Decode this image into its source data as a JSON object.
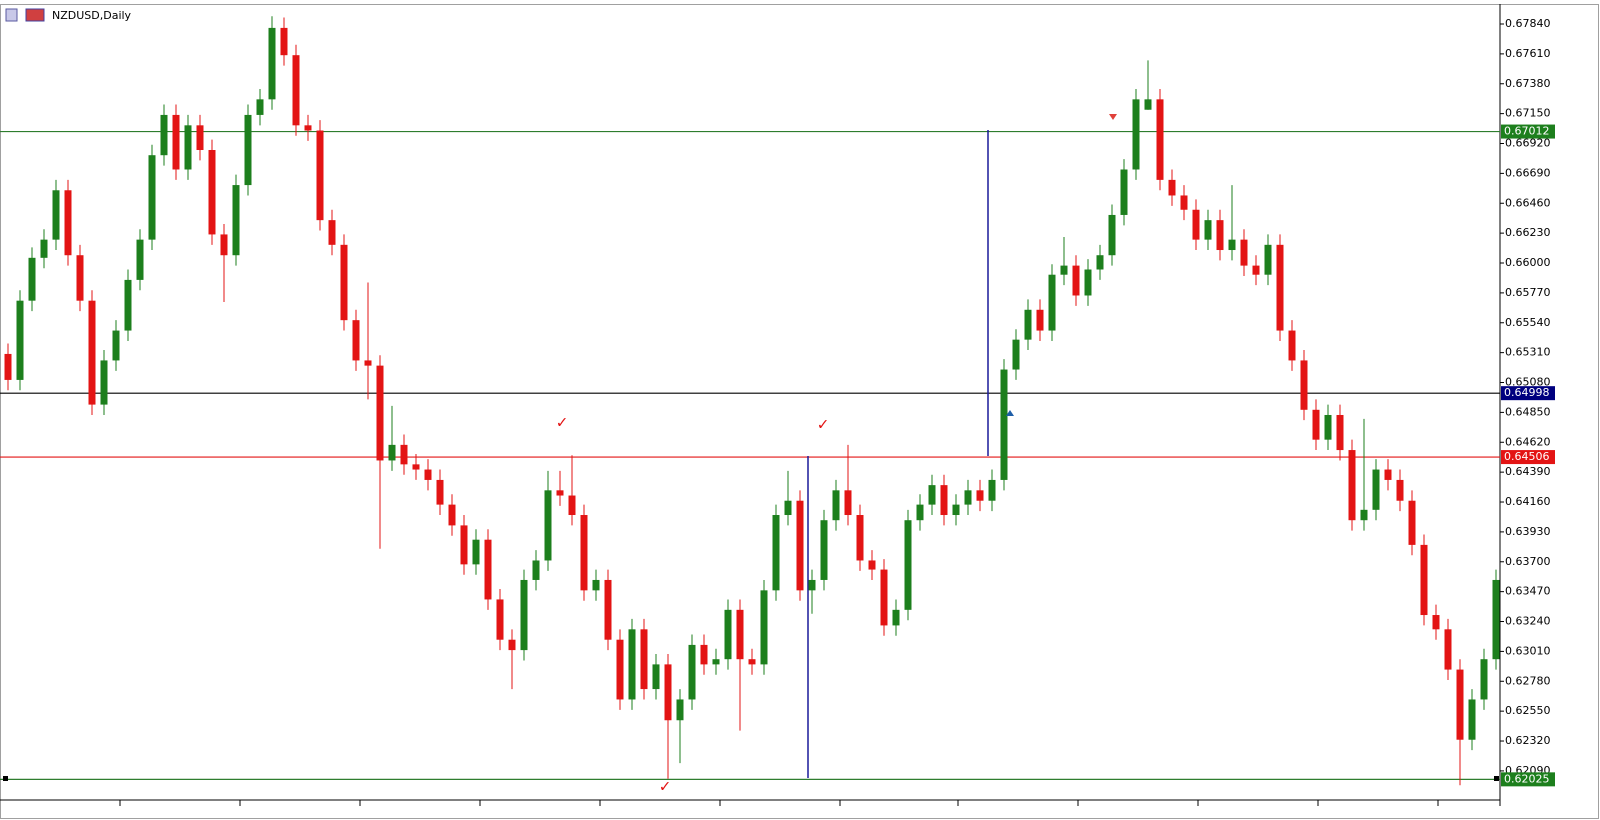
{
  "chart_data": {
    "type": "candlestick",
    "title": "NZDUSD,Daily",
    "up_color": "#1d7f1d",
    "down_color": "#e31414",
    "ylim": [
      0.61866,
      0.67994
    ],
    "yticks": [
      {
        "value": 0.6784,
        "label": "0.67840"
      },
      {
        "value": 0.6761,
        "label": "0.67610"
      },
      {
        "value": 0.6738,
        "label": "0.67380"
      },
      {
        "value": 0.6715,
        "label": "0.67150"
      },
      {
        "value": 0.6692,
        "label": "0.66920"
      },
      {
        "value": 0.6669,
        "label": "0.66690"
      },
      {
        "value": 0.6646,
        "label": "0.66460"
      },
      {
        "value": 0.6623,
        "label": "0.66230"
      },
      {
        "value": 0.66,
        "label": "0.66000"
      },
      {
        "value": 0.6577,
        "label": "0.65770"
      },
      {
        "value": 0.6554,
        "label": "0.65540"
      },
      {
        "value": 0.6531,
        "label": "0.65310"
      },
      {
        "value": 0.6508,
        "label": "0.65080"
      },
      {
        "value": 0.6485,
        "label": "0.64850"
      },
      {
        "value": 0.6462,
        "label": "0.64620"
      },
      {
        "value": 0.6439,
        "label": "0.64390"
      },
      {
        "value": 0.6416,
        "label": "0.64160"
      },
      {
        "value": 0.6393,
        "label": "0.63930"
      },
      {
        "value": 0.637,
        "label": "0.63700"
      },
      {
        "value": 0.6347,
        "label": "0.63470"
      },
      {
        "value": 0.6324,
        "label": "0.63240"
      },
      {
        "value": 0.6301,
        "label": "0.63010"
      },
      {
        "value": 0.6278,
        "label": "0.62780"
      },
      {
        "value": 0.6255,
        "label": "0.62550"
      },
      {
        "value": 0.6232,
        "label": "0.62320"
      },
      {
        "value": 0.6209,
        "label": "0.62090"
      }
    ],
    "levels": [
      {
        "value": 0.67012,
        "color": "#2e7d2e",
        "label_color": "#1d7f1d"
      },
      {
        "value": 0.64998,
        "color": "#000000",
        "label_color": "#00007f"
      },
      {
        "value": 0.64506,
        "color": "#e31414",
        "label_color": "#e31414"
      },
      {
        "value": 0.62025,
        "color": "#2e7d2e",
        "label_color": "#1d7f1d"
      }
    ],
    "open": [
      0.653,
      0.651,
      0.6571,
      0.6604,
      0.6618,
      0.6656,
      0.6606,
      0.6571,
      0.6491,
      0.6525,
      0.6548,
      0.6587,
      0.6618,
      0.6683,
      0.6714,
      0.6672,
      0.6706,
      0.6687,
      0.6622,
      0.6606,
      0.666,
      0.6714,
      0.6726,
      0.6781,
      0.676,
      0.6706,
      0.6702,
      0.6633,
      0.6614,
      0.6556,
      0.6525,
      0.6521,
      0.6448,
      0.646,
      0.6445,
      0.6441,
      0.6433,
      0.6414,
      0.6398,
      0.6368,
      0.6387,
      0.6341,
      0.631,
      0.6302,
      0.6356,
      0.6371,
      0.6425,
      0.6421,
      0.6406,
      0.6348,
      0.6356,
      0.631,
      0.6264,
      0.6318,
      0.6272,
      0.6291,
      0.6248,
      0.6264,
      0.6306,
      0.6291,
      0.6295,
      0.6333,
      0.6295,
      0.6291,
      0.6348,
      0.6406,
      0.6417,
      0.6348,
      0.6356,
      0.6402,
      0.6425,
      0.6406,
      0.6371,
      0.6364,
      0.6321,
      0.6333,
      0.6402,
      0.6414,
      0.6429,
      0.6406,
      0.6414,
      0.6425,
      0.6417,
      0.6433,
      0.6518,
      0.6541,
      0.6564,
      0.6548,
      0.6591,
      0.6598,
      0.6575,
      0.6595,
      0.6606,
      0.6637,
      0.6672,
      0.6718,
      0.6726,
      0.6664,
      0.6652,
      0.6641,
      0.6618,
      0.6633,
      0.661,
      0.6618,
      0.6598,
      0.6591,
      0.6614,
      0.6548,
      0.6525,
      0.6487,
      0.6464,
      0.6483,
      0.6456,
      0.6402,
      0.641,
      0.6441,
      0.6433,
      0.6417,
      0.6383,
      0.6329,
      0.6318,
      0.6287,
      0.6233,
      0.6264,
      0.6295
    ],
    "high": [
      0.6538,
      0.6579,
      0.6612,
      0.6626,
      0.6664,
      0.6664,
      0.6614,
      0.6579,
      0.6533,
      0.6556,
      0.6595,
      0.6626,
      0.6691,
      0.6722,
      0.6722,
      0.6714,
      0.6714,
      0.6695,
      0.663,
      0.6668,
      0.6722,
      0.6734,
      0.679,
      0.6789,
      0.6768,
      0.6714,
      0.671,
      0.6641,
      0.6622,
      0.6564,
      0.6585,
      0.6529,
      0.649,
      0.6468,
      0.6453,
      0.6449,
      0.6441,
      0.6422,
      0.6406,
      0.6395,
      0.6395,
      0.6349,
      0.6318,
      0.6364,
      0.6379,
      0.644,
      0.644,
      0.6452,
      0.6414,
      0.6364,
      0.6364,
      0.6318,
      0.6326,
      0.6326,
      0.6299,
      0.6299,
      0.6272,
      0.6314,
      0.6314,
      0.6303,
      0.6341,
      0.6341,
      0.6303,
      0.6356,
      0.6414,
      0.644,
      0.6425,
      0.6364,
      0.641,
      0.6433,
      0.646,
      0.6414,
      0.6379,
      0.6372,
      0.6341,
      0.641,
      0.6422,
      0.6437,
      0.6437,
      0.6422,
      0.6433,
      0.6433,
      0.6441,
      0.6526,
      0.6549,
      0.6572,
      0.6572,
      0.6599,
      0.662,
      0.6606,
      0.6603,
      0.6614,
      0.6645,
      0.668,
      0.6734,
      0.6756,
      0.6734,
      0.6672,
      0.666,
      0.6649,
      0.6641,
      0.6641,
      0.666,
      0.6626,
      0.6606,
      0.6622,
      0.6622,
      0.6556,
      0.6533,
      0.6495,
      0.6491,
      0.6491,
      0.6464,
      0.648,
      0.6449,
      0.6449,
      0.6441,
      0.6425,
      0.6391,
      0.6337,
      0.6326,
      0.6295,
      0.6272,
      0.6303,
      0.6364
    ],
    "low": [
      0.6502,
      0.6502,
      0.6563,
      0.6596,
      0.661,
      0.6598,
      0.6563,
      0.6483,
      0.6483,
      0.6517,
      0.654,
      0.6579,
      0.661,
      0.6675,
      0.6664,
      0.6664,
      0.6679,
      0.6614,
      0.657,
      0.6598,
      0.6652,
      0.6706,
      0.6718,
      0.6752,
      0.6698,
      0.6694,
      0.6625,
      0.6606,
      0.6548,
      0.6517,
      0.6495,
      0.638,
      0.644,
      0.6437,
      0.6433,
      0.6425,
      0.6406,
      0.639,
      0.636,
      0.636,
      0.6333,
      0.6302,
      0.6272,
      0.6294,
      0.6348,
      0.6363,
      0.6413,
      0.6398,
      0.634,
      0.634,
      0.6302,
      0.6256,
      0.6256,
      0.6264,
      0.6264,
      0.6203,
      0.6215,
      0.6256,
      0.6283,
      0.6283,
      0.6287,
      0.624,
      0.6283,
      0.6283,
      0.634,
      0.6398,
      0.634,
      0.633,
      0.6348,
      0.6394,
      0.6398,
      0.6363,
      0.6356,
      0.6313,
      0.6313,
      0.6325,
      0.6394,
      0.6406,
      0.6398,
      0.6398,
      0.6406,
      0.6409,
      0.6409,
      0.6425,
      0.651,
      0.6533,
      0.654,
      0.654,
      0.6583,
      0.6567,
      0.6567,
      0.6587,
      0.6598,
      0.6629,
      0.6664,
      0.6718,
      0.6656,
      0.6644,
      0.6633,
      0.661,
      0.661,
      0.6602,
      0.6602,
      0.659,
      0.6583,
      0.6583,
      0.654,
      0.6517,
      0.6479,
      0.6456,
      0.6456,
      0.6448,
      0.6394,
      0.6394,
      0.6402,
      0.6425,
      0.6409,
      0.6375,
      0.6321,
      0.631,
      0.6279,
      0.6198,
      0.6225,
      0.6256,
      0.6287
    ],
    "close": [
      0.651,
      0.6571,
      0.6604,
      0.6618,
      0.6656,
      0.6606,
      0.6571,
      0.6491,
      0.6525,
      0.6548,
      0.6587,
      0.6618,
      0.6683,
      0.6714,
      0.6672,
      0.6706,
      0.6687,
      0.6622,
      0.6606,
      0.666,
      0.6714,
      0.6726,
      0.6781,
      0.676,
      0.6706,
      0.6702,
      0.6633,
      0.6614,
      0.6556,
      0.6525,
      0.6521,
      0.6448,
      0.646,
      0.6445,
      0.6441,
      0.6433,
      0.6414,
      0.6398,
      0.6368,
      0.6387,
      0.6341,
      0.631,
      0.6302,
      0.6356,
      0.6371,
      0.6425,
      0.6421,
      0.6406,
      0.6348,
      0.6356,
      0.631,
      0.6264,
      0.6318,
      0.6272,
      0.6291,
      0.6248,
      0.6264,
      0.6306,
      0.6291,
      0.6295,
      0.6333,
      0.6295,
      0.6291,
      0.6348,
      0.6406,
      0.6417,
      0.6348,
      0.6356,
      0.6402,
      0.6425,
      0.6406,
      0.6371,
      0.6364,
      0.6321,
      0.6333,
      0.6402,
      0.6414,
      0.6429,
      0.6406,
      0.6414,
      0.6425,
      0.6417,
      0.6433,
      0.6518,
      0.6541,
      0.6564,
      0.6548,
      0.6591,
      0.6598,
      0.6575,
      0.6595,
      0.6606,
      0.6637,
      0.6672,
      0.6726,
      0.6726,
      0.6664,
      0.6652,
      0.6641,
      0.6618,
      0.6633,
      0.661,
      0.6618,
      0.6598,
      0.6591,
      0.6614,
      0.6548,
      0.6525,
      0.6487,
      0.6464,
      0.6483,
      0.6456,
      0.6402,
      0.641,
      0.6441,
      0.6433,
      0.6417,
      0.6383,
      0.6329,
      0.6318,
      0.6287,
      0.6233,
      0.6264,
      0.6295,
      0.6356
    ]
  }
}
